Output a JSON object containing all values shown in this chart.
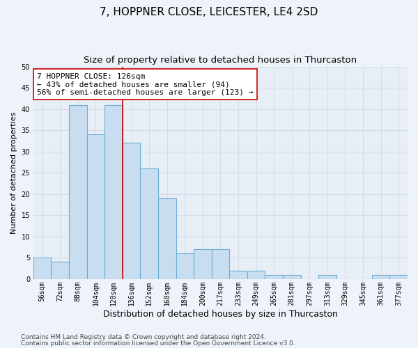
{
  "title": "7, HOPPNER CLOSE, LEICESTER, LE4 2SD",
  "subtitle": "Size of property relative to detached houses in Thurcaston",
  "xlabel": "Distribution of detached houses by size in Thurcaston",
  "ylabel": "Number of detached properties",
  "categories": [
    "56sqm",
    "72sqm",
    "88sqm",
    "104sqm",
    "120sqm",
    "136sqm",
    "152sqm",
    "168sqm",
    "184sqm",
    "200sqm",
    "217sqm",
    "233sqm",
    "249sqm",
    "265sqm",
    "281sqm",
    "297sqm",
    "313sqm",
    "329sqm",
    "345sqm",
    "361sqm",
    "377sqm"
  ],
  "values": [
    5,
    4,
    41,
    34,
    41,
    32,
    26,
    19,
    6,
    7,
    7,
    2,
    2,
    1,
    1,
    0,
    1,
    0,
    0,
    1,
    1
  ],
  "bar_color": "#c9ddf0",
  "bar_edge_color": "#6aaed6",
  "grid_color": "#d0d8e4",
  "background_color": "#e8eef6",
  "fig_background_color": "#eef3fa",
  "vline_x": 4.5,
  "vline_color": "#cc0000",
  "annotation_text": "7 HOPPNER CLOSE: 126sqm\n← 43% of detached houses are smaller (94)\n56% of semi-detached houses are larger (123) →",
  "annotation_box_color": "#ffffff",
  "annotation_box_edge_color": "#cc0000",
  "footnote1": "Contains HM Land Registry data © Crown copyright and database right 2024.",
  "footnote2": "Contains public sector information licensed under the Open Government Licence v3.0.",
  "ylim": [
    0,
    50
  ],
  "title_fontsize": 11,
  "subtitle_fontsize": 9.5,
  "xlabel_fontsize": 9,
  "ylabel_fontsize": 8,
  "tick_fontsize": 7,
  "annotation_fontsize": 8,
  "footnote_fontsize": 6.5
}
